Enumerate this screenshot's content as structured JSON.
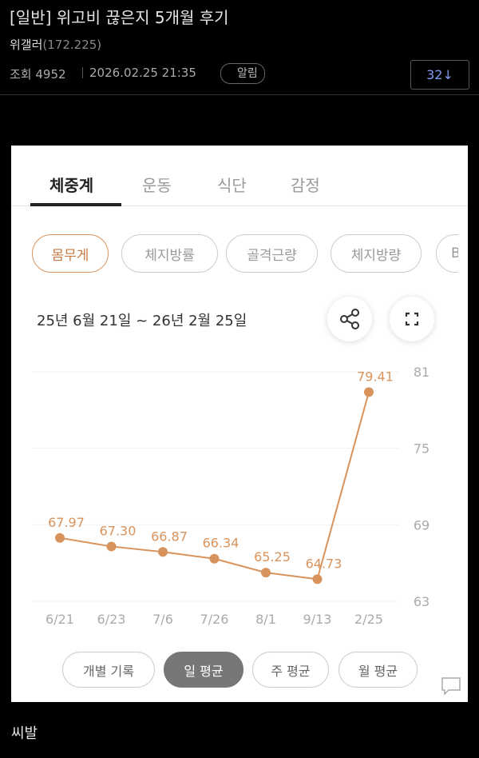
{
  "header": {
    "title": "[일반] 위고비 끊은지 5개월 후기",
    "author": "위갤러",
    "ip": "(172.225)",
    "views": "조회 4952",
    "datetime": "2026.02.25 21:35",
    "alarm": "알림",
    "comments": "32↓"
  },
  "card": {
    "tabs": [
      "체중계",
      "운동",
      "식단",
      "감정"
    ],
    "chips": [
      "몸무게",
      "체지방률",
      "골격근량",
      "체지방량",
      "B"
    ],
    "date_range": "25년 6월 21일 ~ 26년 2월 25일",
    "buttons": [
      "개별 기록",
      "일 평균",
      "주 평균",
      "월 평균"
    ]
  },
  "chart_data": {
    "type": "line",
    "categories": [
      "6/21",
      "6/23",
      "7/6",
      "7/26",
      "8/1",
      "9/13",
      "2/25"
    ],
    "series": [
      {
        "color": "#d8935c",
        "values": [
          67.97,
          67.3,
          66.87,
          66.34,
          65.25,
          64.73,
          79.41
        ],
        "value_labels": [
          "67.97",
          "67.30",
          "66.87",
          "66.34",
          "65.25",
          "64.73",
          "79.41"
        ]
      }
    ],
    "ylim": [
      63,
      81
    ],
    "yticks": [
      63,
      69,
      75,
      81
    ],
    "grid": true
  },
  "body": "씨발"
}
